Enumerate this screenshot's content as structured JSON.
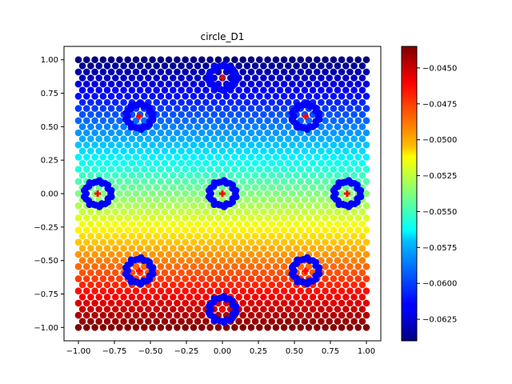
{
  "chart_data": {
    "type": "scatter",
    "title": "circle_D1",
    "xlabel": "",
    "ylabel": "",
    "xlim": [
      -1.1,
      1.1
    ],
    "ylim": [
      -1.1,
      1.1
    ],
    "x_ticks": [
      "−1.00",
      "−0.75",
      "−0.50",
      "−0.25",
      "0.00",
      "0.25",
      "0.50",
      "0.75",
      "1.00"
    ],
    "x_tick_values": [
      -1.0,
      -0.75,
      -0.5,
      -0.25,
      0.0,
      0.25,
      0.5,
      0.75,
      1.0
    ],
    "y_ticks": [
      "−1.00",
      "−0.75",
      "−0.50",
      "−0.25",
      "0.00",
      "0.25",
      "0.50",
      "0.75",
      "1.00"
    ],
    "y_tick_values": [
      -1.0,
      -0.75,
      -0.5,
      -0.25,
      0.0,
      0.25,
      0.5,
      0.75,
      1.0
    ],
    "colormap": "jet",
    "colorbar": {
      "vmin": -0.064,
      "vmax": -0.0435,
      "ticks": [
        "−0.0625",
        "−0.0600",
        "−0.0575",
        "−0.0550",
        "−0.0525",
        "−0.0500",
        "−0.0475",
        "−0.0450"
      ],
      "tick_values": [
        -0.0625,
        -0.06,
        -0.0575,
        -0.055,
        -0.0525,
        -0.05,
        -0.0475,
        -0.045
      ]
    },
    "field": {
      "description_free": true,
      "x_range": [
        -1.0,
        1.0
      ],
      "y_range": [
        -1.0,
        1.0
      ],
      "top_value": -0.064,
      "bottom_value": -0.0435
    },
    "circles": [
      {
        "x": 0.0,
        "y": 0.866,
        "r": 0.09
      },
      {
        "x": -0.577,
        "y": 0.577,
        "r": 0.09
      },
      {
        "x": 0.577,
        "y": 0.577,
        "r": 0.09
      },
      {
        "x": -0.866,
        "y": 0.0,
        "r": 0.09
      },
      {
        "x": 0.0,
        "y": 0.0,
        "r": 0.09
      },
      {
        "x": 0.866,
        "y": 0.0,
        "r": 0.09
      },
      {
        "x": -0.577,
        "y": -0.577,
        "r": 0.09
      },
      {
        "x": 0.577,
        "y": -0.577,
        "r": 0.09
      },
      {
        "x": 0.0,
        "y": -0.866,
        "r": 0.09
      }
    ],
    "centers": [
      {
        "x": 0.0,
        "y": 0.866
      },
      {
        "x": -0.577,
        "y": 0.577
      },
      {
        "x": 0.577,
        "y": 0.577
      },
      {
        "x": -0.866,
        "y": 0.0
      },
      {
        "x": 0.0,
        "y": 0.0
      },
      {
        "x": 0.866,
        "y": 0.0
      },
      {
        "x": -0.577,
        "y": -0.577
      },
      {
        "x": 0.577,
        "y": -0.577
      },
      {
        "x": 0.0,
        "y": -0.866
      }
    ],
    "ring_color": "#0000ff",
    "center_color": "#ff0000",
    "grid": false,
    "legend": "none"
  }
}
